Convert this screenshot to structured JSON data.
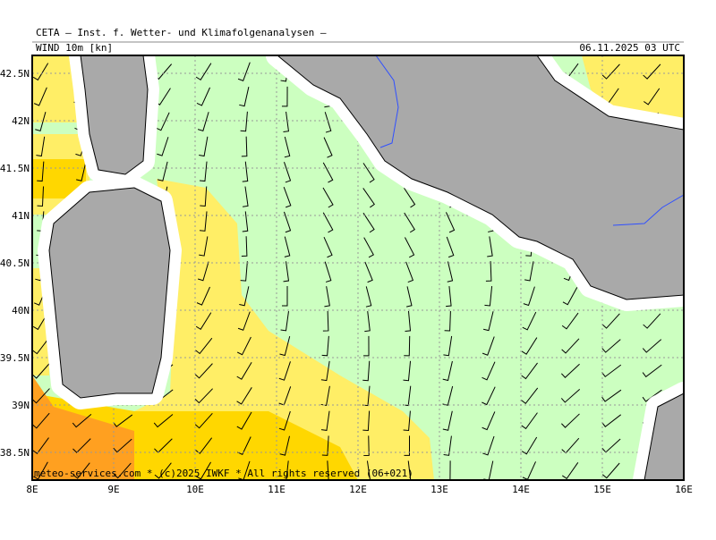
{
  "header": {
    "title": "CETA – Inst. f. Wetter- und Klimafolgenanalysen –",
    "parameter": "WIND 10m [kn]",
    "valid_time": "06.11.2025 03 UTC"
  },
  "map": {
    "lat_labels": [
      "42.5N",
      "42N",
      "41.5N",
      "41N",
      "40.5N",
      "40N",
      "39.5N",
      "39N",
      "38.5N"
    ],
    "lon_labels": [
      "8E",
      "9E",
      "10E",
      "11E",
      "12E",
      "13E",
      "14E",
      "15E",
      "16E"
    ],
    "credit": "meteo-services.com * (c)2025 IWKF * All rights reserved (06+021)"
  }
}
